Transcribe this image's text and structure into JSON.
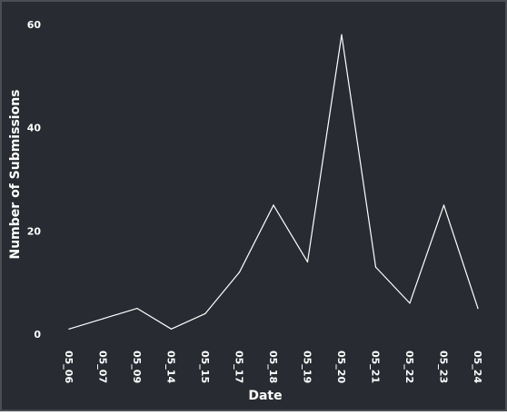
{
  "chart_data": {
    "type": "line",
    "title": "",
    "xlabel": "Date",
    "ylabel": "Number of Submissions",
    "categories": [
      "05_06",
      "05_07",
      "05_09",
      "05_14",
      "05_15",
      "05_17",
      "05_18",
      "05_19",
      "05_20",
      "05_21",
      "05_22",
      "05_23",
      "05_24"
    ],
    "series": [
      {
        "name": "Submissions",
        "values": [
          1,
          3,
          5,
          1,
          4,
          12,
          25,
          14,
          58,
          13,
          6,
          25,
          5
        ]
      }
    ],
    "y_ticks": [
      0,
      20,
      40,
      60
    ],
    "ylim": [
      0,
      60
    ],
    "grid": false,
    "legend": "none"
  },
  "colors": {
    "background": "#282b31",
    "line": "#ffffff",
    "text": "#ffffff",
    "border": "#4a4d52"
  }
}
